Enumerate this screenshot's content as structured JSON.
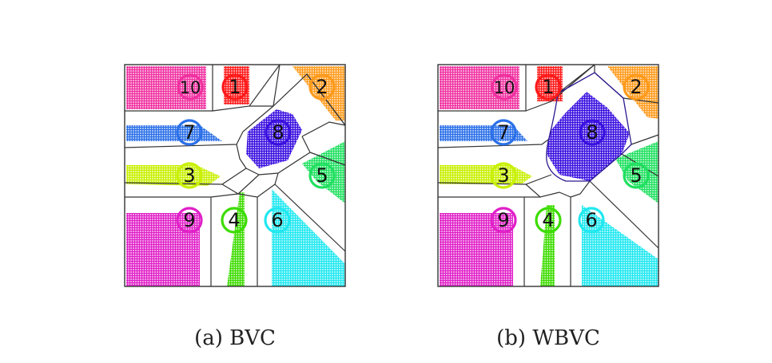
{
  "panels": [
    {
      "id": "a",
      "caption": "(a)  BVC",
      "robots": [
        {
          "label": "1",
          "color": "#ff1a1a"
        },
        {
          "label": "2",
          "color": "#ff9a1a"
        },
        {
          "label": "3",
          "color": "#c8f000"
        },
        {
          "label": "4",
          "color": "#3ddc00"
        },
        {
          "label": "5",
          "color": "#20e060"
        },
        {
          "label": "6",
          "color": "#20e8f0"
        },
        {
          "label": "7",
          "color": "#2a6fe8"
        },
        {
          "label": "8",
          "color": "#3a10e0"
        },
        {
          "label": "9",
          "color": "#e020c8"
        },
        {
          "label": "10",
          "color": "#f030a0"
        }
      ]
    },
    {
      "id": "b",
      "caption": "(b)  WBVC",
      "robots": [
        {
          "label": "1",
          "color": "#ff1a1a"
        },
        {
          "label": "2",
          "color": "#ff9a1a"
        },
        {
          "label": "3",
          "color": "#c8f000"
        },
        {
          "label": "4",
          "color": "#3ddc00"
        },
        {
          "label": "5",
          "color": "#20e060"
        },
        {
          "label": "6",
          "color": "#20e8f0"
        },
        {
          "label": "7",
          "color": "#2a6fe8"
        },
        {
          "label": "8",
          "color": "#3a10e0"
        },
        {
          "label": "9",
          "color": "#e020c8"
        },
        {
          "label": "10",
          "color": "#f030a0"
        }
      ]
    }
  ]
}
